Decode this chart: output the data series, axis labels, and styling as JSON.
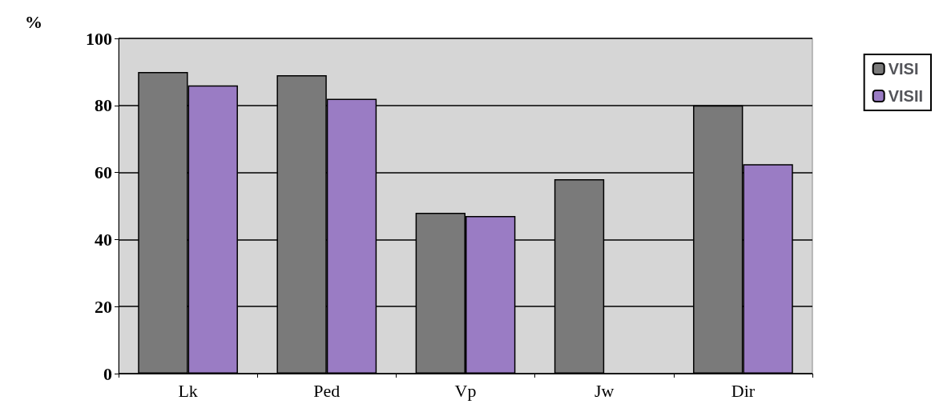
{
  "chart_data": {
    "type": "bar",
    "ylabel": "%",
    "categories": [
      "Lk",
      "Ped",
      "Vp",
      "Jw",
      "Dir"
    ],
    "series": [
      {
        "name": "VISI",
        "color": "#7a7a7a",
        "values": [
          90,
          89,
          48,
          58,
          80
        ]
      },
      {
        "name": "VISII",
        "color": "#9a7cc4",
        "values": [
          86,
          82,
          47,
          null,
          62.5
        ]
      }
    ],
    "ylim": [
      0,
      100
    ],
    "yticks": [
      0,
      20,
      40,
      60,
      80,
      100
    ],
    "grid": "y",
    "legend": "top right"
  }
}
